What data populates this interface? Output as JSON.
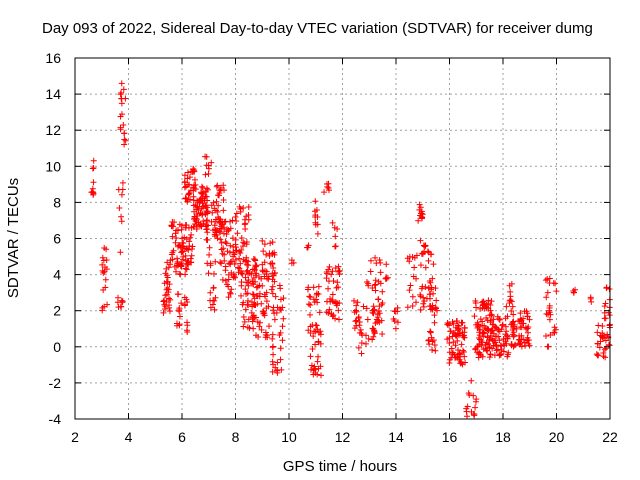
{
  "chart_data": {
    "type": "scatter",
    "title": "Day 093 of 2022, Sidereal Day-to-day VTEC variation (SDTVAR) for receiver dumg",
    "xlabel": "GPS time / hours",
    "ylabel": "SDTVAR / TECUs",
    "xlim": [
      2,
      22
    ],
    "ylim": [
      -4,
      16
    ],
    "xticks": [
      2,
      4,
      6,
      8,
      10,
      12,
      14,
      16,
      18,
      20,
      22
    ],
    "yticks": [
      -4,
      -2,
      0,
      2,
      4,
      6,
      8,
      10,
      12,
      14,
      16
    ],
    "grid": true,
    "marker": "plus",
    "color": "#ff0000",
    "clusters": [
      {
        "x": [
          2.6,
          2.7
        ],
        "y": [
          8.4,
          10.4
        ],
        "n": 10
      },
      {
        "x": [
          3.0,
          3.2
        ],
        "y": [
          2.0,
          5.5
        ],
        "n": 18
      },
      {
        "x": [
          3.6,
          3.8
        ],
        "y": [
          2.2,
          3.0
        ],
        "n": 8
      },
      {
        "x": [
          3.7,
          3.9
        ],
        "y": [
          11.0,
          14.8
        ],
        "n": 18
      },
      {
        "x": [
          3.6,
          3.8
        ],
        "y": [
          4.0,
          9.2
        ],
        "n": 8
      },
      {
        "x": [
          5.3,
          5.6
        ],
        "y": [
          1.8,
          4.8
        ],
        "n": 30
      },
      {
        "x": [
          5.6,
          6.0
        ],
        "y": [
          4.0,
          7.0
        ],
        "n": 40
      },
      {
        "x": [
          5.8,
          6.2
        ],
        "y": [
          0.8,
          3.0
        ],
        "n": 20
      },
      {
        "x": [
          6.0,
          6.4
        ],
        "y": [
          4.0,
          6.8
        ],
        "n": 40
      },
      {
        "x": [
          6.1,
          6.5
        ],
        "y": [
          8.0,
          10.0
        ],
        "n": 30
      },
      {
        "x": [
          6.4,
          7.0
        ],
        "y": [
          6.5,
          9.0
        ],
        "n": 80
      },
      {
        "x": [
          6.8,
          7.1
        ],
        "y": [
          9.5,
          10.6
        ],
        "n": 8
      },
      {
        "x": [
          6.9,
          7.3
        ],
        "y": [
          1.8,
          6.5
        ],
        "n": 25
      },
      {
        "x": [
          7.1,
          7.6
        ],
        "y": [
          6.0,
          9.0
        ],
        "n": 40
      },
      {
        "x": [
          7.4,
          8.0
        ],
        "y": [
          2.5,
          7.0
        ],
        "n": 50
      },
      {
        "x": [
          7.9,
          8.5
        ],
        "y": [
          4.0,
          7.8
        ],
        "n": 50
      },
      {
        "x": [
          8.2,
          8.8
        ],
        "y": [
          1.0,
          5.0
        ],
        "n": 50
      },
      {
        "x": [
          8.6,
          9.2
        ],
        "y": [
          0.5,
          4.5
        ],
        "n": 50
      },
      {
        "x": [
          9.0,
          9.5
        ],
        "y": [
          3.5,
          6.0
        ],
        "n": 30
      },
      {
        "x": [
          9.2,
          9.8
        ],
        "y": [
          -1.5,
          3.5
        ],
        "n": 40
      },
      {
        "x": [
          10.1,
          10.2
        ],
        "y": [
          4.5,
          4.9
        ],
        "n": 3
      },
      {
        "x": [
          10.6,
          10.8
        ],
        "y": [
          5.3,
          5.7
        ],
        "n": 3
      },
      {
        "x": [
          10.7,
          11.2
        ],
        "y": [
          0.5,
          3.5
        ],
        "n": 30
      },
      {
        "x": [
          10.8,
          11.2
        ],
        "y": [
          -1.6,
          0.5
        ],
        "n": 20
      },
      {
        "x": [
          10.9,
          11.1
        ],
        "y": [
          5.2,
          8.1
        ],
        "n": 10
      },
      {
        "x": [
          11.3,
          11.5
        ],
        "y": [
          8.3,
          9.1
        ],
        "n": 6
      },
      {
        "x": [
          11.4,
          11.9
        ],
        "y": [
          1.5,
          4.5
        ],
        "n": 40
      },
      {
        "x": [
          11.6,
          11.8
        ],
        "y": [
          5.5,
          7.3
        ],
        "n": 6
      },
      {
        "x": [
          12.4,
          12.8
        ],
        "y": [
          1.0,
          2.6
        ],
        "n": 15
      },
      {
        "x": [
          12.6,
          13.0
        ],
        "y": [
          -0.5,
          1.0
        ],
        "n": 10
      },
      {
        "x": [
          12.9,
          13.5
        ],
        "y": [
          1.5,
          5.0
        ],
        "n": 30
      },
      {
        "x": [
          13.1,
          13.5
        ],
        "y": [
          0.4,
          2.4
        ],
        "n": 20
      },
      {
        "x": [
          13.6,
          13.8
        ],
        "y": [
          3.6,
          4.6
        ],
        "n": 5
      },
      {
        "x": [
          13.9,
          14.1
        ],
        "y": [
          1.0,
          2.2
        ],
        "n": 8
      },
      {
        "x": [
          14.4,
          14.8
        ],
        "y": [
          2.0,
          5.5
        ],
        "n": 15
      },
      {
        "x": [
          14.8,
          15.0
        ],
        "y": [
          6.9,
          7.9
        ],
        "n": 12
      },
      {
        "x": [
          14.9,
          15.4
        ],
        "y": [
          2.0,
          6.0
        ],
        "n": 40
      },
      {
        "x": [
          15.2,
          15.6
        ],
        "y": [
          -0.3,
          3.3
        ],
        "n": 25
      },
      {
        "x": [
          15.9,
          16.6
        ],
        "y": [
          -1.0,
          1.5
        ],
        "n": 70
      },
      {
        "x": [
          16.6,
          17.0
        ],
        "y": [
          -3.9,
          -1.8
        ],
        "n": 15
      },
      {
        "x": [
          16.9,
          17.6
        ],
        "y": [
          -0.6,
          2.6
        ],
        "n": 80
      },
      {
        "x": [
          17.4,
          18.2
        ],
        "y": [
          -0.6,
          1.8
        ],
        "n": 70
      },
      {
        "x": [
          18.1,
          18.4
        ],
        "y": [
          2.0,
          3.5
        ],
        "n": 10
      },
      {
        "x": [
          18.3,
          19.0
        ],
        "y": [
          0.0,
          2.0
        ],
        "n": 60
      },
      {
        "x": [
          19.6,
          20.0
        ],
        "y": [
          0.0,
          3.8
        ],
        "n": 25
      },
      {
        "x": [
          20.6,
          20.7
        ],
        "y": [
          2.6,
          3.3
        ],
        "n": 4
      },
      {
        "x": [
          21.2,
          21.3
        ],
        "y": [
          2.4,
          2.8
        ],
        "n": 3
      },
      {
        "x": [
          21.5,
          22.0
        ],
        "y": [
          -0.6,
          1.3
        ],
        "n": 30
      },
      {
        "x": [
          21.8,
          22.0
        ],
        "y": [
          1.3,
          3.3
        ],
        "n": 12
      }
    ]
  }
}
